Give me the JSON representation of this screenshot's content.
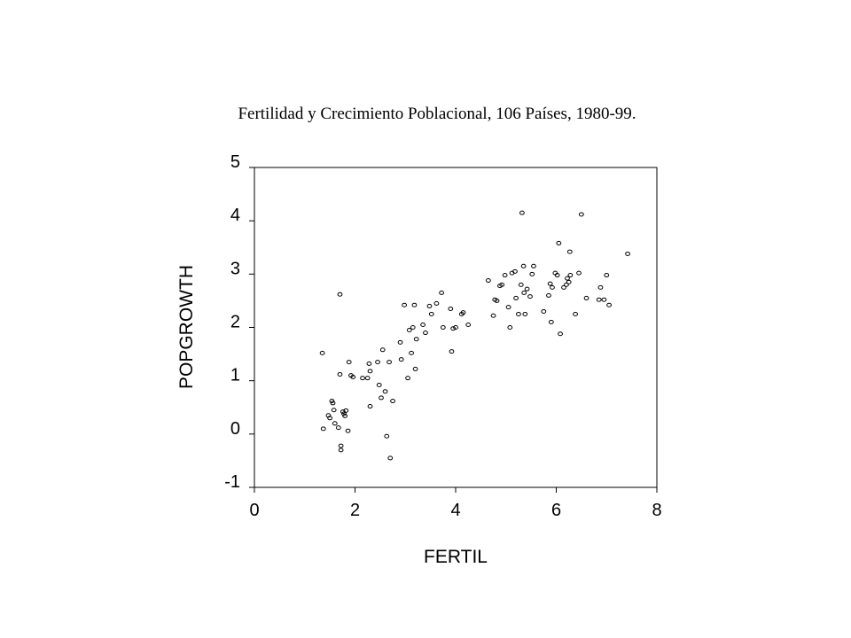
{
  "chart_data": {
    "type": "scatter",
    "title": "Fertilidad y Crecimiento Poblacional, 106 Países, 1980-99.",
    "xlabel": "FERTIL",
    "ylabel": "POPGROWTH",
    "xlim": [
      0,
      8
    ],
    "ylim": [
      -1,
      5
    ],
    "xticks": [
      0,
      2,
      4,
      6,
      8
    ],
    "yticks": [
      -1,
      0,
      1,
      2,
      3,
      4,
      5
    ],
    "grid": false,
    "legend": "none",
    "marker": "open-circle",
    "colors": {
      "marker": "#000000",
      "axes": "#000000"
    },
    "points": [
      [
        1.35,
        1.52
      ],
      [
        1.37,
        0.1
      ],
      [
        1.47,
        0.35
      ],
      [
        1.5,
        0.3
      ],
      [
        1.54,
        0.62
      ],
      [
        1.56,
        0.58
      ],
      [
        1.58,
        0.45
      ],
      [
        1.6,
        0.2
      ],
      [
        1.67,
        0.12
      ],
      [
        1.7,
        2.62
      ],
      [
        1.7,
        1.12
      ],
      [
        1.72,
        -0.22
      ],
      [
        1.72,
        -0.3
      ],
      [
        1.76,
        0.42
      ],
      [
        1.78,
        0.38
      ],
      [
        1.8,
        0.34
      ],
      [
        1.82,
        0.44
      ],
      [
        1.86,
        0.06
      ],
      [
        1.88,
        1.35
      ],
      [
        1.92,
        1.1
      ],
      [
        1.96,
        1.07
      ],
      [
        2.15,
        1.05
      ],
      [
        2.25,
        1.05
      ],
      [
        2.28,
        1.32
      ],
      [
        2.3,
        1.18
      ],
      [
        2.3,
        0.52
      ],
      [
        2.45,
        1.35
      ],
      [
        2.48,
        0.92
      ],
      [
        2.52,
        0.68
      ],
      [
        2.55,
        1.58
      ],
      [
        2.6,
        0.8
      ],
      [
        2.63,
        -0.04
      ],
      [
        2.68,
        1.35
      ],
      [
        2.7,
        -0.45
      ],
      [
        2.75,
        0.62
      ],
      [
        2.9,
        1.72
      ],
      [
        2.92,
        1.4
      ],
      [
        2.98,
        2.42
      ],
      [
        3.05,
        1.05
      ],
      [
        3.08,
        1.95
      ],
      [
        3.12,
        1.52
      ],
      [
        3.15,
        2.0
      ],
      [
        3.18,
        2.42
      ],
      [
        3.2,
        1.22
      ],
      [
        3.22,
        1.78
      ],
      [
        3.35,
        2.05
      ],
      [
        3.4,
        1.9
      ],
      [
        3.48,
        2.4
      ],
      [
        3.52,
        2.25
      ],
      [
        3.72,
        2.65
      ],
      [
        3.75,
        2.0
      ],
      [
        3.9,
        2.35
      ],
      [
        3.92,
        1.55
      ],
      [
        3.95,
        1.98
      ],
      [
        4.0,
        2.0
      ],
      [
        4.12,
        2.25
      ],
      [
        4.15,
        2.28
      ],
      [
        4.25,
        2.05
      ],
      [
        4.65,
        2.88
      ],
      [
        4.75,
        2.22
      ],
      [
        4.78,
        2.52
      ],
      [
        4.82,
        2.5
      ],
      [
        4.88,
        2.78
      ],
      [
        4.92,
        2.8
      ],
      [
        4.98,
        2.98
      ],
      [
        5.05,
        2.38
      ],
      [
        5.08,
        2.0
      ],
      [
        5.12,
        3.02
      ],
      [
        5.18,
        3.05
      ],
      [
        5.2,
        2.55
      ],
      [
        5.25,
        2.25
      ],
      [
        5.3,
        2.8
      ],
      [
        5.32,
        4.15
      ],
      [
        5.35,
        3.15
      ],
      [
        5.36,
        2.65
      ],
      [
        5.38,
        2.25
      ],
      [
        5.42,
        2.72
      ],
      [
        5.48,
        2.58
      ],
      [
        5.52,
        3.0
      ],
      [
        5.55,
        3.15
      ],
      [
        5.85,
        2.6
      ],
      [
        5.88,
        2.82
      ],
      [
        5.9,
        2.1
      ],
      [
        5.92,
        2.75
      ],
      [
        5.98,
        3.02
      ],
      [
        6.02,
        2.98
      ],
      [
        6.05,
        3.58
      ],
      [
        6.08,
        1.88
      ],
      [
        6.15,
        2.75
      ],
      [
        6.2,
        2.8
      ],
      [
        6.22,
        2.92
      ],
      [
        6.25,
        2.85
      ],
      [
        6.27,
        3.42
      ],
      [
        6.28,
        2.98
      ],
      [
        6.38,
        2.25
      ],
      [
        6.45,
        3.02
      ],
      [
        6.5,
        4.12
      ],
      [
        6.6,
        2.55
      ],
      [
        6.85,
        2.52
      ],
      [
        6.88,
        2.75
      ],
      [
        6.95,
        2.52
      ],
      [
        7.0,
        2.98
      ],
      [
        7.05,
        2.42
      ],
      [
        7.42,
        3.38
      ],
      [
        5.75,
        2.3
      ],
      [
        3.62,
        2.45
      ]
    ]
  }
}
